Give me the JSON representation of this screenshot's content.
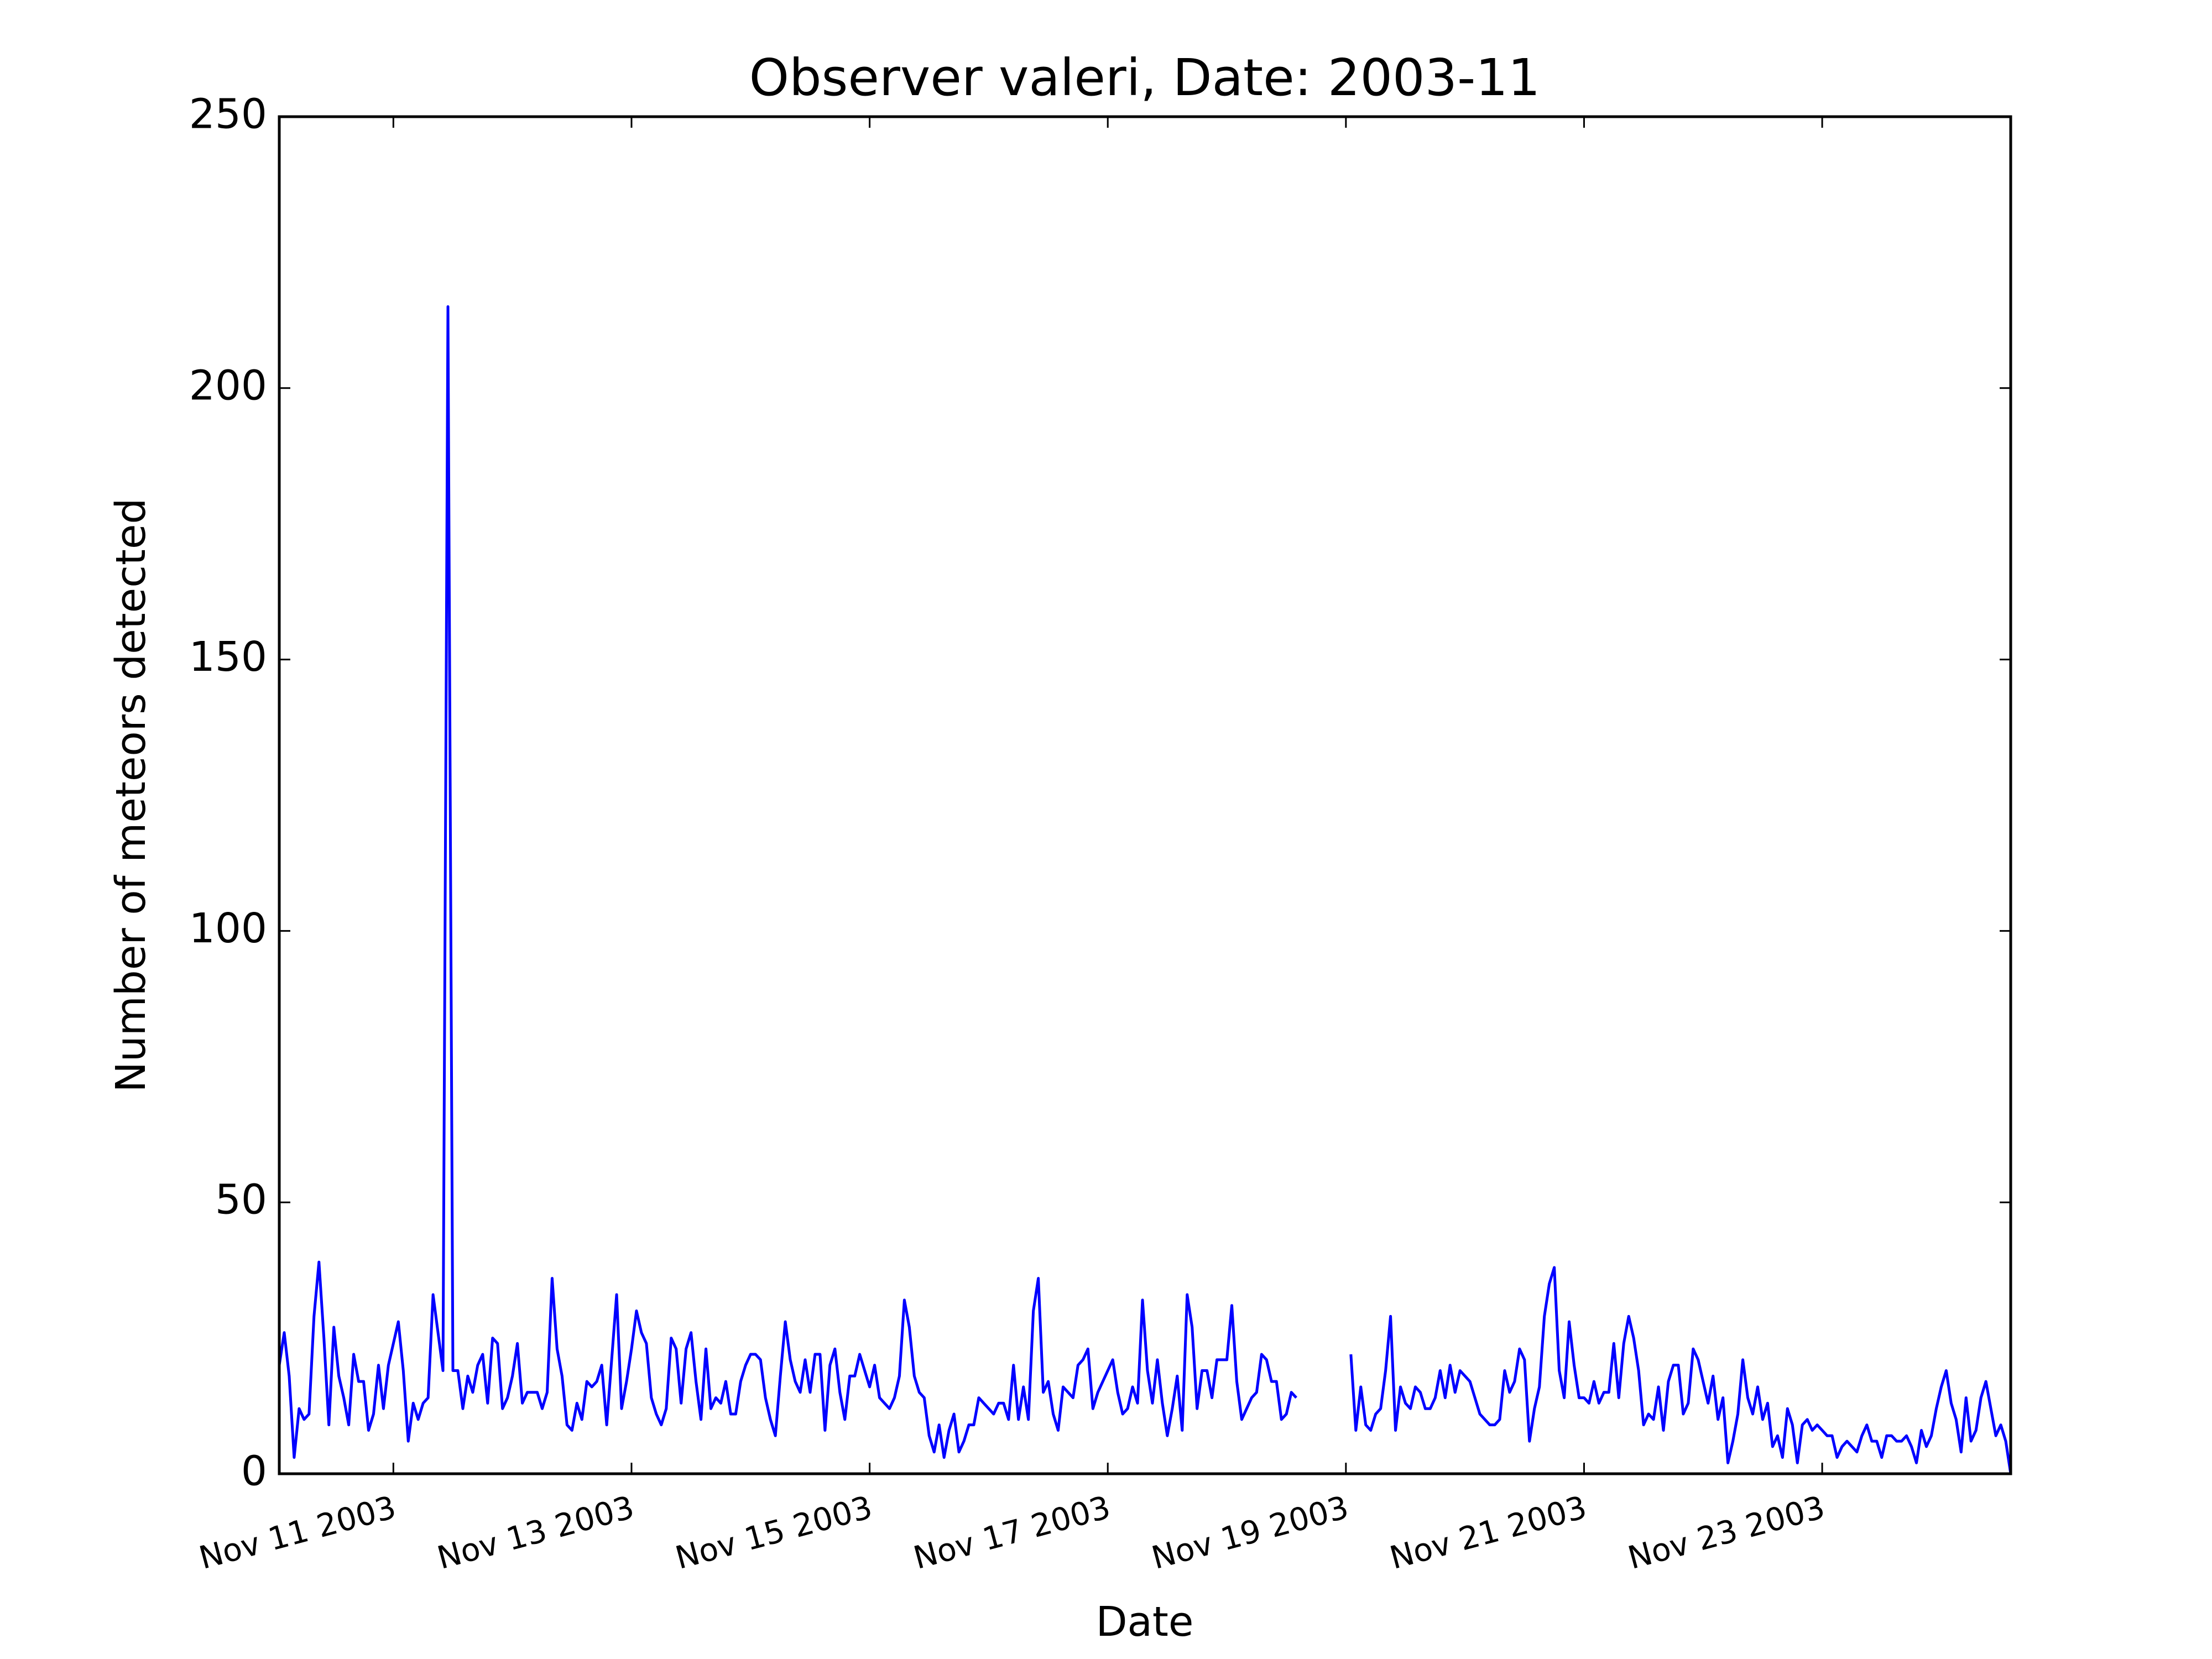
{
  "chart_data": {
    "type": "line",
    "title": "Observer valeri, Date: 2003-11",
    "xlabel": "Date",
    "ylabel": "Number of meteors detected",
    "color": "#0000ff",
    "x": [
      "2003-11-10T01:00",
      "2003-11-10T02:00",
      "2003-11-10T03:00",
      "2003-11-10T04:00",
      "2003-11-10T05:00",
      "2003-11-10T06:00",
      "2003-11-10T07:00",
      "2003-11-10T08:00",
      "2003-11-10T09:00",
      "2003-11-10T10:00",
      "2003-11-10T11:00",
      "2003-11-10T12:00",
      "2003-11-10T13:00",
      "2003-11-10T14:00",
      "2003-11-10T15:00",
      "2003-11-10T16:00",
      "2003-11-10T17:00",
      "2003-11-10T18:00",
      "2003-11-10T19:00",
      "2003-11-10T20:00",
      "2003-11-10T21:00",
      "2003-11-10T22:00",
      "2003-11-10T23:00",
      "2003-11-11T00:00",
      "2003-11-11T01:00",
      "2003-11-11T02:00",
      "2003-11-11T03:00",
      "2003-11-11T04:00",
      "2003-11-11T05:00",
      "2003-11-11T06:00",
      "2003-11-11T07:00",
      "2003-11-11T08:00",
      "2003-11-11T09:00",
      "2003-11-11T10:00",
      "2003-11-11T11:00",
      "2003-11-11T12:00",
      "2003-11-11T13:00",
      "2003-11-11T14:00",
      "2003-11-11T15:00",
      "2003-11-11T16:00",
      "2003-11-11T17:00",
      "2003-11-11T18:00",
      "2003-11-11T19:00",
      "2003-11-11T20:00",
      "2003-11-11T21:00",
      "2003-11-11T22:00",
      "2003-11-11T23:00",
      "2003-11-12T00:00",
      "2003-11-12T01:00",
      "2003-11-12T02:00",
      "2003-11-12T03:00",
      "2003-11-12T04:00",
      "2003-11-12T05:00",
      "2003-11-12T06:00",
      "2003-11-12T07:00",
      "2003-11-12T08:00",
      "2003-11-12T09:00",
      "2003-11-12T10:00",
      "2003-11-12T11:00",
      "2003-11-12T12:00",
      "2003-11-12T13:00",
      "2003-11-12T14:00",
      "2003-11-12T15:00",
      "2003-11-12T16:00",
      "2003-11-12T17:00",
      "2003-11-12T18:00",
      "2003-11-12T19:00",
      "2003-11-12T20:00",
      "2003-11-12T21:00",
      "2003-11-12T22:00",
      "2003-11-12T23:00",
      "2003-11-13T00:00",
      "2003-11-13T01:00",
      "2003-11-13T02:00",
      "2003-11-13T03:00",
      "2003-11-13T04:00",
      "2003-11-13T05:00",
      "2003-11-13T06:00",
      "2003-11-13T07:00",
      "2003-11-13T08:00",
      "2003-11-13T09:00",
      "2003-11-13T10:00",
      "2003-11-13T11:00",
      "2003-11-13T12:00",
      "2003-11-13T13:00",
      "2003-11-13T14:00",
      "2003-11-13T15:00",
      "2003-11-13T16:00",
      "2003-11-13T17:00",
      "2003-11-13T18:00",
      "2003-11-13T19:00",
      "2003-11-13T20:00",
      "2003-11-13T21:00",
      "2003-11-13T22:00",
      "2003-11-13T23:00",
      "2003-11-14T00:00",
      "2003-11-14T01:00",
      "2003-11-14T02:00",
      "2003-11-14T03:00",
      "2003-11-14T04:00",
      "2003-11-14T05:00",
      "2003-11-14T06:00",
      "2003-11-14T07:00",
      "2003-11-14T08:00",
      "2003-11-14T09:00",
      "2003-11-14T10:00",
      "2003-11-14T11:00",
      "2003-11-14T12:00",
      "2003-11-14T13:00",
      "2003-11-14T14:00",
      "2003-11-14T15:00",
      "2003-11-14T16:00",
      "2003-11-14T17:00",
      "2003-11-14T18:00",
      "2003-11-14T19:00",
      "2003-11-14T20:00",
      "2003-11-14T21:00",
      "2003-11-14T22:00",
      "2003-11-14T23:00",
      "2003-11-15T00:00",
      "2003-11-15T01:00",
      "2003-11-15T02:00",
      "2003-11-15T03:00",
      "2003-11-15T04:00",
      "2003-11-15T05:00",
      "2003-11-15T06:00",
      "2003-11-15T07:00",
      "2003-11-15T08:00",
      "2003-11-15T09:00",
      "2003-11-15T10:00",
      "2003-11-15T11:00",
      "2003-11-15T12:00",
      "2003-11-15T13:00",
      "2003-11-15T14:00",
      "2003-11-15T15:00",
      "2003-11-15T16:00",
      "2003-11-15T17:00",
      "2003-11-15T18:00",
      "2003-11-15T19:00",
      "2003-11-15T20:00",
      "2003-11-15T21:00",
      "2003-11-15T22:00",
      "2003-11-15T23:00",
      "2003-11-16T00:00",
      "2003-11-16T01:00",
      "2003-11-16T02:00",
      "2003-11-16T03:00",
      "2003-11-16T04:00",
      "2003-11-16T05:00",
      "2003-11-16T06:00",
      "2003-11-16T07:00",
      "2003-11-16T08:00",
      "2003-11-16T09:00",
      "2003-11-16T10:00",
      "2003-11-16T11:00",
      "2003-11-16T12:00",
      "2003-11-16T13:00",
      "2003-11-16T14:00",
      "2003-11-16T15:00",
      "2003-11-16T16:00",
      "2003-11-16T17:00",
      "2003-11-16T18:00",
      "2003-11-16T19:00",
      "2003-11-16T20:00",
      "2003-11-16T21:00",
      "2003-11-16T22:00",
      "2003-11-16T23:00",
      "2003-11-17T00:00",
      "2003-11-17T01:00",
      "2003-11-17T02:00",
      "2003-11-17T03:00",
      "2003-11-17T04:00",
      "2003-11-17T05:00",
      "2003-11-17T06:00",
      "2003-11-17T07:00",
      "2003-11-17T08:00",
      "2003-11-17T09:00",
      "2003-11-17T10:00",
      "2003-11-17T11:00",
      "2003-11-17T12:00",
      "2003-11-17T13:00",
      "2003-11-17T14:00",
      "2003-11-17T15:00",
      "2003-11-17T16:00",
      "2003-11-17T17:00",
      "2003-11-17T18:00",
      "2003-11-17T19:00",
      "2003-11-17T20:00",
      "2003-11-17T21:00",
      "2003-11-17T22:00",
      "2003-11-17T23:00",
      "2003-11-18T00:00",
      "2003-11-18T01:00",
      "2003-11-18T02:00",
      "2003-11-18T03:00",
      "2003-11-18T04:00",
      "2003-11-18T05:00",
      "2003-11-18T06:00",
      "2003-11-18T07:00",
      "2003-11-18T08:00",
      "2003-11-18T09:00",
      "2003-11-18T10:00",
      "2003-11-18T11:00",
      "2003-11-18T12:00",
      "2003-11-18T13:00",
      "2003-11-18T14:00",
      "2003-11-18T15:00",
      "2003-11-18T16:00",
      "2003-11-18T17:00",
      "2003-11-18T18:00",
      "2003-11-18T19:00",
      "2003-11-18T20:00",
      "2003-11-18T21:00",
      "2003-11-18T22:00",
      "2003-11-18T23:00",
      "2003-11-19T00:00",
      "2003-11-19T01:00",
      "2003-11-19T02:00",
      "2003-11-19T03:00",
      "2003-11-19T04:00",
      "2003-11-19T05:00",
      "2003-11-19T06:00",
      "2003-11-19T07:00",
      "2003-11-19T08:00",
      "2003-11-19T09:00",
      "2003-11-19T10:00",
      "2003-11-19T11:00",
      "2003-11-19T12:00",
      "2003-11-19T13:00",
      "2003-11-19T14:00",
      "2003-11-19T15:00",
      "2003-11-19T16:00",
      "2003-11-19T17:00",
      "2003-11-19T18:00",
      "2003-11-19T19:00",
      "2003-11-19T20:00",
      "2003-11-19T21:00",
      "2003-11-19T22:00",
      "2003-11-19T23:00",
      "2003-11-20T00:00",
      "2003-11-20T01:00",
      "2003-11-20T02:00",
      "2003-11-20T03:00",
      "2003-11-20T04:00",
      "2003-11-20T05:00",
      "2003-11-20T06:00",
      "2003-11-20T07:00",
      "2003-11-20T08:00",
      "2003-11-20T09:00",
      "2003-11-20T10:00",
      "2003-11-20T11:00",
      "2003-11-20T12:00",
      "2003-11-20T13:00",
      "2003-11-20T14:00",
      "2003-11-20T15:00",
      "2003-11-20T16:00",
      "2003-11-20T17:00",
      "2003-11-20T18:00",
      "2003-11-20T19:00",
      "2003-11-20T20:00",
      "2003-11-20T21:00",
      "2003-11-20T22:00",
      "2003-11-20T23:00",
      "2003-11-21T00:00",
      "2003-11-21T01:00",
      "2003-11-21T02:00",
      "2003-11-21T03:00",
      "2003-11-21T04:00",
      "2003-11-21T05:00",
      "2003-11-21T06:00",
      "2003-11-21T07:00",
      "2003-11-21T08:00",
      "2003-11-21T09:00",
      "2003-11-21T10:00",
      "2003-11-21T11:00",
      "2003-11-21T12:00",
      "2003-11-21T13:00",
      "2003-11-21T14:00",
      "2003-11-21T15:00",
      "2003-11-21T16:00",
      "2003-11-21T17:00",
      "2003-11-21T18:00",
      "2003-11-21T19:00",
      "2003-11-21T20:00",
      "2003-11-21T21:00",
      "2003-11-21T22:00",
      "2003-11-21T23:00",
      "2003-11-22T00:00",
      "2003-11-22T01:00",
      "2003-11-22T02:00",
      "2003-11-22T03:00",
      "2003-11-22T04:00",
      "2003-11-22T05:00",
      "2003-11-22T06:00",
      "2003-11-22T07:00",
      "2003-11-22T08:00",
      "2003-11-22T09:00",
      "2003-11-22T10:00",
      "2003-11-22T11:00",
      "2003-11-22T12:00",
      "2003-11-22T13:00",
      "2003-11-22T14:00",
      "2003-11-22T15:00",
      "2003-11-22T16:00",
      "2003-11-22T17:00",
      "2003-11-22T18:00",
      "2003-11-22T19:00",
      "2003-11-22T20:00",
      "2003-11-22T21:00",
      "2003-11-22T22:00",
      "2003-11-22T23:00",
      "2003-11-23T00:00",
      "2003-11-23T01:00",
      "2003-11-23T02:00",
      "2003-11-23T03:00",
      "2003-11-23T04:00",
      "2003-11-23T05:00",
      "2003-11-23T06:00",
      "2003-11-23T07:00",
      "2003-11-23T08:00",
      "2003-11-23T09:00",
      "2003-11-23T10:00",
      "2003-11-23T11:00",
      "2003-11-23T12:00",
      "2003-11-23T13:00",
      "2003-11-23T14:00",
      "2003-11-23T15:00",
      "2003-11-23T16:00",
      "2003-11-23T17:00",
      "2003-11-23T18:00",
      "2003-11-23T19:00",
      "2003-11-23T20:00",
      "2003-11-23T21:00",
      "2003-11-23T22:00",
      "2003-11-23T23:00",
      "2003-11-24T00:00",
      "2003-11-24T01:00",
      "2003-11-24T02:00",
      "2003-11-24T03:00",
      "2003-11-24T04:00",
      "2003-11-24T05:00",
      "2003-11-24T06:00",
      "2003-11-24T07:00",
      "2003-11-24T08:00",
      "2003-11-24T09:00",
      "2003-11-24T10:00",
      "2003-11-24T11:00",
      "2003-11-24T12:00",
      "2003-11-24T13:00",
      "2003-11-24T14:00"
    ],
    "values": [
      20,
      26,
      18,
      3,
      12,
      10,
      11,
      29,
      39,
      25,
      9,
      27,
      18,
      14,
      9,
      22,
      17,
      17,
      8,
      11,
      20,
      12,
      20,
      24,
      28,
      19,
      6,
      13,
      10,
      13,
      14,
      33,
      26,
      19,
      215,
      19,
      19,
      12,
      18,
      15,
      20,
      22,
      13,
      25,
      24,
      12,
      14,
      18,
      24,
      13,
      15,
      15,
      15,
      12,
      15,
      36,
      23,
      18,
      9,
      8,
      13,
      10,
      17,
      16,
      17,
      20,
      9,
      21,
      33,
      12,
      17,
      23,
      30,
      26,
      24,
      14,
      11,
      9,
      12,
      25,
      23,
      13,
      23,
      26,
      17,
      10,
      23,
      12,
      14,
      13,
      17,
      11,
      11,
      17,
      20,
      22,
      22,
      21,
      14,
      10,
      7,
      18,
      28,
      21,
      17,
      15,
      21,
      15,
      22,
      22,
      8,
      20,
      23,
      15,
      10,
      18,
      18,
      22,
      19,
      16,
      20,
      14,
      13,
      12,
      14,
      18,
      32,
      27,
      18,
      15,
      14,
      7,
      4,
      9,
      3,
      8,
      11,
      4,
      6,
      9,
      9,
      14,
      13,
      12,
      11,
      13,
      13,
      10,
      20,
      10,
      16,
      10,
      30,
      36,
      15,
      17,
      11,
      8,
      16,
      15,
      14,
      20,
      21,
      23,
      12,
      15,
      17,
      19,
      21,
      15,
      11,
      12,
      16,
      13,
      32,
      19,
      13,
      21,
      13,
      7,
      12,
      18,
      8,
      33,
      27,
      12,
      19,
      19,
      14,
      21,
      21,
      21,
      31,
      17,
      10,
      12,
      14,
      15,
      22,
      21,
      17,
      17,
      10,
      11,
      15,
      14,
      null,
      null,
      null,
      null,
      null,
      null,
      null,
      null,
      null,
      null,
      22,
      8,
      16,
      9,
      8,
      11,
      12,
      19,
      29,
      8,
      16,
      13,
      12,
      16,
      15,
      12,
      12,
      14,
      19,
      14,
      20,
      15,
      19,
      18,
      17,
      14,
      11,
      10,
      9,
      9,
      10,
      19,
      15,
      17,
      23,
      21,
      6,
      12,
      16,
      29,
      35,
      38,
      19,
      14,
      28,
      20,
      14,
      14,
      13,
      17,
      13,
      15,
      15,
      24,
      14,
      24,
      29,
      25,
      19,
      9,
      11,
      10,
      16,
      8,
      17,
      20,
      20,
      11,
      13,
      23,
      21,
      17,
      13,
      18,
      10,
      14,
      2,
      6,
      11,
      21,
      14,
      11,
      16,
      10,
      13,
      5,
      7,
      3,
      12,
      9,
      2,
      9,
      10,
      8,
      9,
      8,
      7,
      7,
      3,
      5,
      6,
      5,
      4,
      7,
      9,
      6,
      6,
      3,
      7,
      7,
      6,
      6,
      7,
      5,
      2,
      8,
      5,
      7,
      12,
      16,
      19,
      13,
      10,
      4,
      14,
      6,
      8,
      14,
      17,
      12,
      7,
      9,
      6,
      0
    ],
    "xlim": [
      "2003-11-10T01:00",
      "2003-11-24T14:00"
    ],
    "xticks": [
      {
        "value": "2003-11-11T00:00",
        "label": "Nov 11 2003"
      },
      {
        "value": "2003-11-13T00:00",
        "label": "Nov 13 2003"
      },
      {
        "value": "2003-11-15T00:00",
        "label": "Nov 15 2003"
      },
      {
        "value": "2003-11-17T00:00",
        "label": "Nov 17 2003"
      },
      {
        "value": "2003-11-19T00:00",
        "label": "Nov 19 2003"
      },
      {
        "value": "2003-11-21T00:00",
        "label": "Nov 21 2003"
      },
      {
        "value": "2003-11-23T00:00",
        "label": "Nov 23 2003"
      }
    ],
    "ylim": [
      0,
      250
    ],
    "yticks": [
      0,
      50,
      100,
      150,
      200,
      250
    ]
  }
}
